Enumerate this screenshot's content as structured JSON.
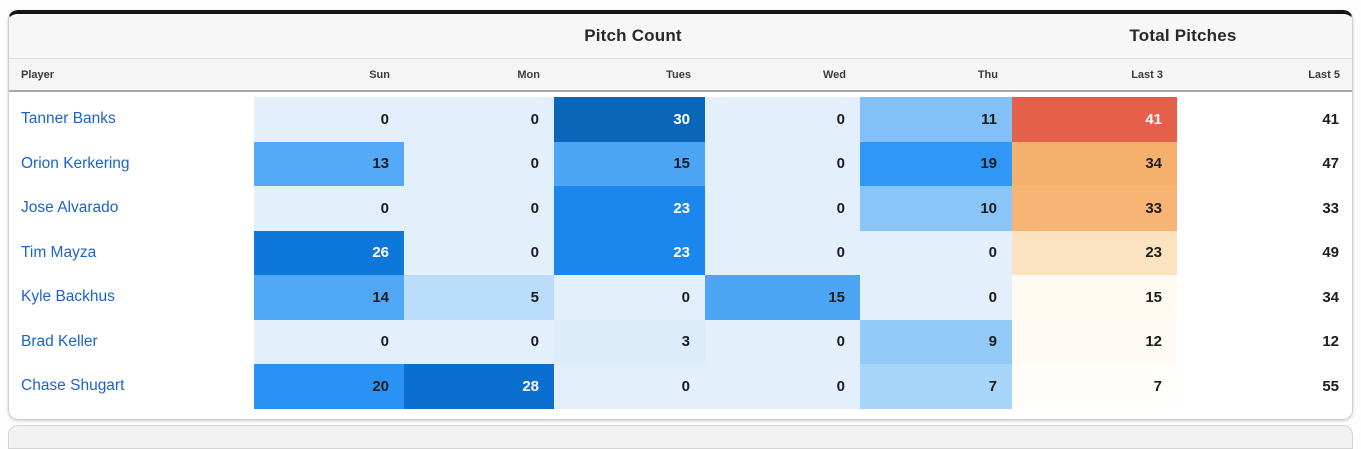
{
  "group_headers": {
    "pitch_count": "Pitch Count",
    "total_pitches": "Total Pitches"
  },
  "table": {
    "columns": [
      "Player",
      "Sun",
      "Mon",
      "Tues",
      "Wed",
      "Thu",
      "Last 3",
      "Last 5"
    ],
    "rows": [
      {
        "player": "Tanner Banks",
        "cells": [
          {
            "v": "0",
            "bg": "#e4effc",
            "fg": "#1c1c1c"
          },
          {
            "v": "0",
            "bg": "#e4effc",
            "fg": "#1c1c1c"
          },
          {
            "v": "30",
            "bg": "#0966b8",
            "fg": "#ffffff"
          },
          {
            "v": "0",
            "bg": "#e4effc",
            "fg": "#1c1c1c"
          },
          {
            "v": "11",
            "bg": "#81c1f7",
            "fg": "#1c1c1c"
          },
          {
            "v": "41",
            "bg": "#e5604a",
            "fg": "#ffffff"
          },
          {
            "v": "41",
            "bg": "",
            "fg": "#1c1c1c"
          }
        ]
      },
      {
        "player": "Orion Kerkering",
        "cells": [
          {
            "v": "13",
            "bg": "#55aaf7",
            "fg": "#1c1c1c"
          },
          {
            "v": "0",
            "bg": "#e4effc",
            "fg": "#1c1c1c"
          },
          {
            "v": "15",
            "bg": "#4da5f6",
            "fg": "#1c1c1c"
          },
          {
            "v": "0",
            "bg": "#e4effc",
            "fg": "#1c1c1c"
          },
          {
            "v": "19",
            "bg": "#2f97f5",
            "fg": "#1c1c1c"
          },
          {
            "v": "34",
            "bg": "#f6b06e",
            "fg": "#1c1c1c"
          },
          {
            "v": "47",
            "bg": "",
            "fg": "#1c1c1c"
          }
        ]
      },
      {
        "player": "Jose Alvarado",
        "cells": [
          {
            "v": "0",
            "bg": "#e4effc",
            "fg": "#1c1c1c"
          },
          {
            "v": "0",
            "bg": "#e4effc",
            "fg": "#1c1c1c"
          },
          {
            "v": "23",
            "bg": "#1b86ee",
            "fg": "#ffffff"
          },
          {
            "v": "0",
            "bg": "#e4effc",
            "fg": "#1c1c1c"
          },
          {
            "v": "10",
            "bg": "#8ac5f8",
            "fg": "#1c1c1c"
          },
          {
            "v": "33",
            "bg": "#f7b475",
            "fg": "#1c1c1c"
          },
          {
            "v": "33",
            "bg": "",
            "fg": "#1c1c1c"
          }
        ]
      },
      {
        "player": "Tim Mayza",
        "cells": [
          {
            "v": "26",
            "bg": "#0e77da",
            "fg": "#ffffff"
          },
          {
            "v": "0",
            "bg": "#e4effc",
            "fg": "#1c1c1c"
          },
          {
            "v": "23",
            "bg": "#1b86ee",
            "fg": "#ffffff"
          },
          {
            "v": "0",
            "bg": "#e4effc",
            "fg": "#1c1c1c"
          },
          {
            "v": "0",
            "bg": "#e4effc",
            "fg": "#1c1c1c"
          },
          {
            "v": "23",
            "bg": "#fbe3c1",
            "fg": "#1c1c1c"
          },
          {
            "v": "49",
            "bg": "",
            "fg": "#1c1c1c"
          }
        ]
      },
      {
        "player": "Kyle Backhus",
        "cells": [
          {
            "v": "14",
            "bg": "#4fa7f6",
            "fg": "#1c1c1c"
          },
          {
            "v": "5",
            "bg": "#b9ddfb",
            "fg": "#1c1c1c"
          },
          {
            "v": "0",
            "bg": "#e4effc",
            "fg": "#1c1c1c"
          },
          {
            "v": "15",
            "bg": "#4da5f6",
            "fg": "#1c1c1c"
          },
          {
            "v": "0",
            "bg": "#e4effc",
            "fg": "#1c1c1c"
          },
          {
            "v": "15",
            "bg": "#fffaf1",
            "fg": "#1c1c1c"
          },
          {
            "v": "34",
            "bg": "",
            "fg": "#1c1c1c"
          }
        ]
      },
      {
        "player": "Brad Keller",
        "cells": [
          {
            "v": "0",
            "bg": "#e4effc",
            "fg": "#1c1c1c"
          },
          {
            "v": "0",
            "bg": "#e4effc",
            "fg": "#1c1c1c"
          },
          {
            "v": "3",
            "bg": "#ddecfb",
            "fg": "#1c1c1c"
          },
          {
            "v": "0",
            "bg": "#e4effc",
            "fg": "#1c1c1c"
          },
          {
            "v": "9",
            "bg": "#93caf8",
            "fg": "#1c1c1c"
          },
          {
            "v": "12",
            "bg": "#fffbf4",
            "fg": "#1c1c1c"
          },
          {
            "v": "12",
            "bg": "",
            "fg": "#1c1c1c"
          }
        ]
      },
      {
        "player": "Chase Shugart",
        "cells": [
          {
            "v": "20",
            "bg": "#2a92f4",
            "fg": "#1c1c1c"
          },
          {
            "v": "28",
            "bg": "#0b6fcf",
            "fg": "#ffffff"
          },
          {
            "v": "0",
            "bg": "#e4effc",
            "fg": "#1c1c1c"
          },
          {
            "v": "0",
            "bg": "#e4effc",
            "fg": "#1c1c1c"
          },
          {
            "v": "7",
            "bg": "#a8d5fa",
            "fg": "#1c1c1c"
          },
          {
            "v": "7",
            "bg": "#fffdf9",
            "fg": "#1c1c1c"
          },
          {
            "v": "55",
            "bg": "",
            "fg": "#1c1c1c"
          }
        ]
      }
    ]
  },
  "chart_data": {
    "type": "heatmap",
    "title": "Pitch Count / Total Pitches",
    "columns": [
      "Sun",
      "Mon",
      "Tues",
      "Wed",
      "Thu",
      "Last 3",
      "Last 5"
    ],
    "rows": [
      "Tanner Banks",
      "Orion Kerkering",
      "Jose Alvarado",
      "Tim Mayza",
      "Kyle Backhus",
      "Brad Keller",
      "Chase Shugart"
    ],
    "values": [
      [
        0,
        0,
        30,
        0,
        11,
        41,
        41
      ],
      [
        13,
        0,
        15,
        0,
        19,
        34,
        47
      ],
      [
        0,
        0,
        23,
        0,
        10,
        33,
        33
      ],
      [
        26,
        0,
        23,
        0,
        0,
        23,
        49
      ],
      [
        14,
        5,
        0,
        15,
        0,
        15,
        34
      ],
      [
        0,
        0,
        3,
        0,
        9,
        12,
        12
      ],
      [
        20,
        28,
        0,
        0,
        7,
        7,
        55
      ]
    ],
    "color_scales": {
      "day_columns": {
        "low": "#e4effc",
        "high": "#0966b8"
      },
      "last3_column": {
        "low": "#fffdf9",
        "high": "#e5604a"
      },
      "last5_column": "none"
    },
    "legend_position": "none",
    "grid": false
  },
  "colors": {
    "player_link": "#1b63c8",
    "card_top_border": "#141414",
    "header_bg": "#f5f5f5"
  }
}
